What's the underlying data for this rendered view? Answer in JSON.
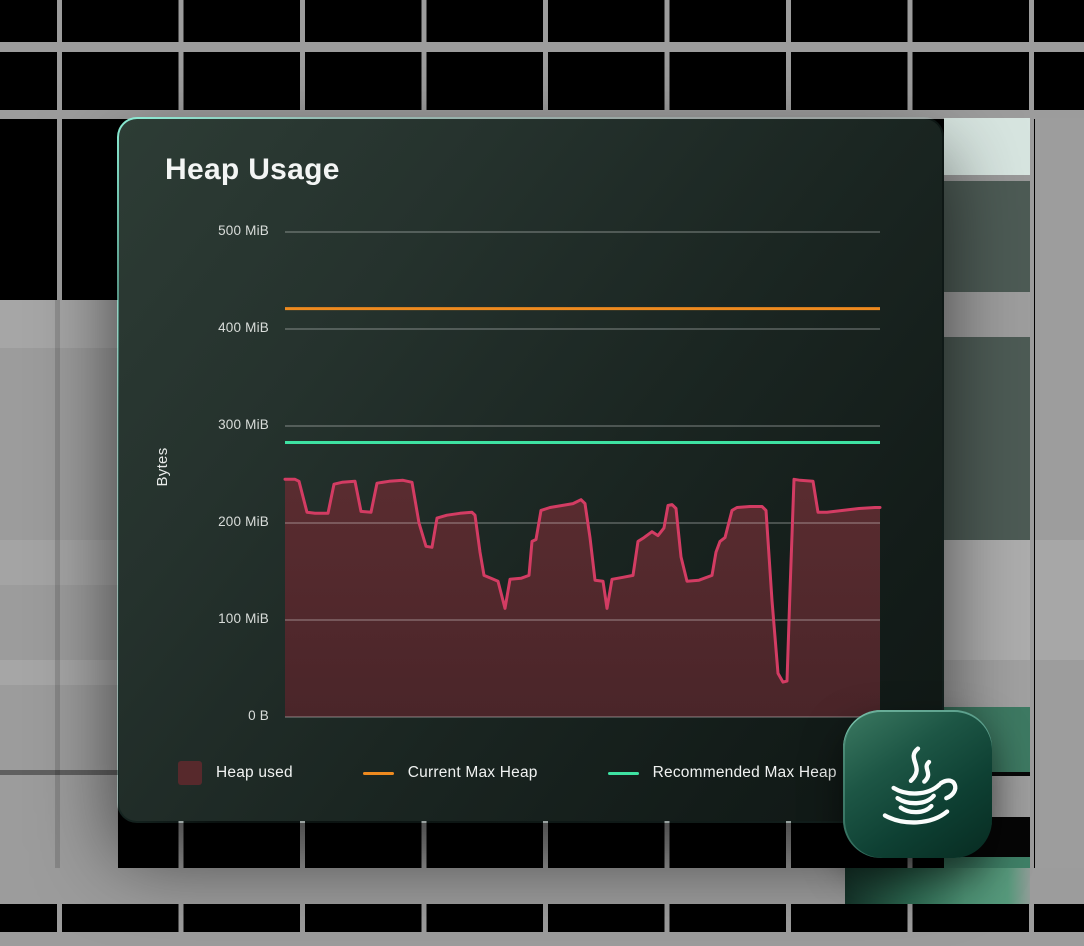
{
  "card": {
    "title": "Heap Usage"
  },
  "chart_data": {
    "type": "area",
    "title": "Heap Usage",
    "xlabel": "",
    "ylabel": "Bytes",
    "unit": "MiB",
    "ylim": [
      0,
      500
    ],
    "grid": true,
    "legend_position": "bottom",
    "yticks": [
      {
        "v": 500,
        "label": "500 MiB"
      },
      {
        "v": 400,
        "label": "400 MiB"
      },
      {
        "v": 300,
        "label": "300 MiB"
      },
      {
        "v": 200,
        "label": "200 MiB"
      },
      {
        "v": 100,
        "label": "100 MiB"
      },
      {
        "v": 0,
        "label": "0 B"
      }
    ],
    "series": [
      {
        "name": "Heap used",
        "type": "area",
        "color": "#d33c63",
        "fill_top": "#5a2c30",
        "fill_bottom": "#4a2529",
        "legend_swatch": "#57292c",
        "points": [
          [
            0,
            245
          ],
          [
            10,
            245
          ],
          [
            14,
            243
          ],
          [
            22,
            211
          ],
          [
            30,
            210
          ],
          [
            43,
            210
          ],
          [
            49,
            240
          ],
          [
            57,
            242
          ],
          [
            70,
            243
          ],
          [
            76,
            212
          ],
          [
            86,
            211
          ],
          [
            92,
            241
          ],
          [
            104,
            243
          ],
          [
            118,
            244
          ],
          [
            127,
            242
          ],
          [
            134,
            200
          ],
          [
            141,
            176
          ],
          [
            147,
            175
          ],
          [
            152,
            205
          ],
          [
            162,
            208
          ],
          [
            175,
            210
          ],
          [
            187,
            211
          ],
          [
            190,
            208
          ],
          [
            195,
            170
          ],
          [
            199,
            146
          ],
          [
            206,
            143
          ],
          [
            213,
            140
          ],
          [
            220,
            112
          ],
          [
            225,
            142
          ],
          [
            236,
            143
          ],
          [
            244,
            146
          ],
          [
            247,
            181
          ],
          [
            251,
            183
          ],
          [
            256,
            213
          ],
          [
            265,
            216
          ],
          [
            277,
            218
          ],
          [
            288,
            220
          ],
          [
            296,
            224
          ],
          [
            300,
            220
          ],
          [
            305,
            185
          ],
          [
            310,
            141
          ],
          [
            318,
            140
          ],
          [
            322,
            112
          ],
          [
            327,
            142
          ],
          [
            338,
            144
          ],
          [
            348,
            146
          ],
          [
            353,
            181
          ],
          [
            359,
            185
          ],
          [
            367,
            191
          ],
          [
            373,
            187
          ],
          [
            379,
            195
          ],
          [
            383,
            218
          ],
          [
            387,
            219
          ],
          [
            391,
            215
          ],
          [
            396,
            165
          ],
          [
            402,
            140
          ],
          [
            414,
            141
          ],
          [
            427,
            146
          ],
          [
            431,
            170
          ],
          [
            435,
            181
          ],
          [
            440,
            185
          ],
          [
            447,
            213
          ],
          [
            452,
            216
          ],
          [
            465,
            217
          ],
          [
            477,
            217
          ],
          [
            481,
            213
          ],
          [
            487,
            120
          ],
          [
            493,
            45
          ],
          [
            498,
            36
          ],
          [
            502,
            37
          ],
          [
            505,
            130
          ],
          [
            509,
            245
          ],
          [
            515,
            244
          ],
          [
            528,
            243
          ],
          [
            533,
            211
          ],
          [
            542,
            211
          ],
          [
            558,
            213
          ],
          [
            574,
            215
          ],
          [
            590,
            216
          ],
          [
            595,
            216
          ]
        ]
      },
      {
        "name": "Current Max Heap",
        "type": "hline",
        "value": 421,
        "color": "#ee8a1f"
      },
      {
        "name": "Recommended Max Heap",
        "type": "hline",
        "value": 283,
        "color": "#3ee2a2"
      }
    ]
  },
  "legend": {
    "items": [
      {
        "label": "Heap used",
        "swatch": "area"
      },
      {
        "label": "Current Max Heap",
        "swatch": "line"
      },
      {
        "label": "Recommended Max Heap",
        "swatch": "line"
      }
    ]
  },
  "badge": {
    "icon": "java-coffee-cup-icon"
  },
  "colors": {
    "heap_line": "#d33c63",
    "heap_fill": "#57292c",
    "current_max": "#ee8a1f",
    "recommended_max": "#3ee2a2",
    "card_accent_edge": "#8beed6",
    "gridline": "rgba(255,255,255,0.22)"
  }
}
